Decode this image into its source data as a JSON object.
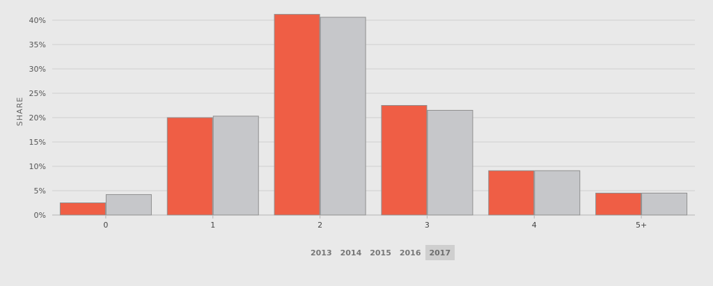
{
  "chart_data": {
    "type": "bar",
    "categories": [
      "0",
      "1",
      "2",
      "3",
      "4",
      "5+"
    ],
    "series": [
      {
        "values": [
          2.5,
          20.0,
          41.2,
          22.5,
          9.1,
          4.5
        ],
        "color": "#ef5e45"
      },
      {
        "values": [
          4.2,
          20.3,
          40.6,
          21.5,
          9.1,
          4.5
        ],
        "color": "#c6c7ca"
      }
    ],
    "ylabel": "SHARE",
    "ylim": [
      0,
      40
    ],
    "yticks": [
      "0%",
      "5%",
      "10%",
      "15%",
      "20%",
      "25%",
      "30%",
      "35%",
      "40%"
    ],
    "grid": true
  },
  "year_selector": {
    "years": [
      "2013",
      "2014",
      "2015",
      "2016",
      "2017"
    ],
    "active": "2017"
  }
}
